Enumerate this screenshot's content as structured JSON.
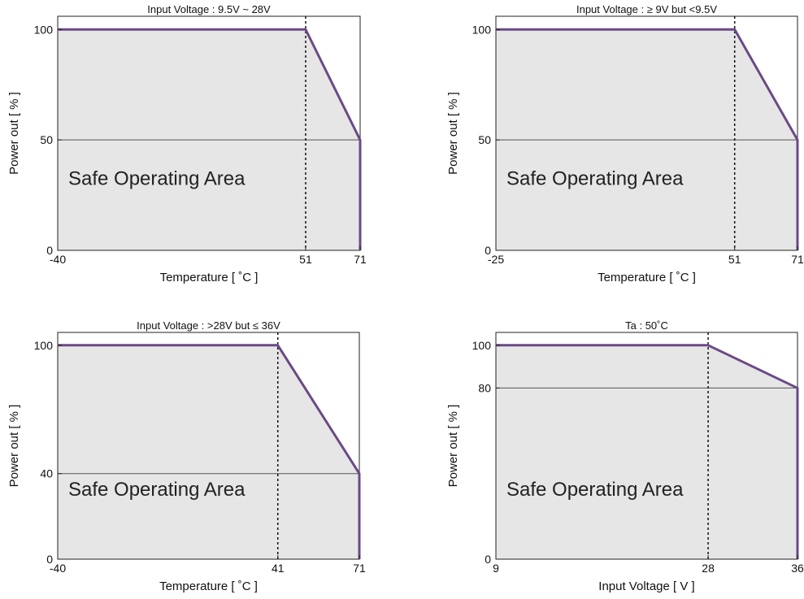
{
  "colors": {
    "curve": "#6a4a86",
    "area": "#e6e6e6",
    "frame": "#222222",
    "grid": "#555555"
  },
  "chart_data": [
    {
      "type": "area",
      "title": "Input Voltage : 9.5V ~ 28V",
      "xlabel": "Temperature [ ˚C ]",
      "ylabel": "Power out [ % ]",
      "xlim": [
        -40,
        71
      ],
      "ylim": [
        0,
        106
      ],
      "xticks": [
        -40,
        51,
        71
      ],
      "xtick_labels": [
        "-40",
        "51",
        "71"
      ],
      "yticks": [
        0,
        50,
        100
      ],
      "ytick_labels": [
        "0",
        "50",
        "100"
      ],
      "x": [
        -40,
        51,
        71,
        71
      ],
      "y": [
        100,
        100,
        50,
        0
      ],
      "hline": 50,
      "vline": 51,
      "annotation": "Safe Operating Area"
    },
    {
      "type": "area",
      "title": "Input Voltage : ≥ 9V but <9.5V",
      "xlabel": "Temperature [ ˚C ]",
      "ylabel": "Power out [ % ]",
      "xlim": [
        -25,
        71
      ],
      "ylim": [
        0,
        106
      ],
      "xticks": [
        -25,
        51,
        71
      ],
      "xtick_labels": [
        "-25",
        "51",
        "71"
      ],
      "yticks": [
        0,
        50,
        100
      ],
      "ytick_labels": [
        "0",
        "50",
        "100"
      ],
      "x": [
        -25,
        51,
        71,
        71
      ],
      "y": [
        100,
        100,
        50,
        0
      ],
      "hline": 50,
      "vline": 51,
      "annotation": "Safe Operating Area"
    },
    {
      "type": "area",
      "title": "Input Voltage : >28V but ≤ 36V",
      "xlabel": "Temperature [ ˚C ]",
      "ylabel": "Power out [ % ]",
      "xlim": [
        -40,
        71
      ],
      "ylim": [
        0,
        106
      ],
      "xticks": [
        -40,
        41,
        71
      ],
      "xtick_labels": [
        "-40",
        "41",
        "71"
      ],
      "yticks": [
        0,
        40,
        100
      ],
      "ytick_labels": [
        "0",
        "40",
        "100"
      ],
      "x": [
        -40,
        41,
        71,
        71
      ],
      "y": [
        100,
        100,
        40,
        0
      ],
      "hline": 40,
      "vline": 41,
      "annotation": "Safe Operating Area"
    },
    {
      "type": "area",
      "title": "Ta : 50˚C",
      "xlabel": "Input Voltage [ V ]",
      "ylabel": "Power out [ % ]",
      "xlim": [
        9,
        36
      ],
      "ylim": [
        0,
        106
      ],
      "xticks": [
        9,
        28,
        36
      ],
      "xtick_labels": [
        "9",
        "28",
        "36"
      ],
      "yticks": [
        0,
        80,
        100
      ],
      "ytick_labels": [
        "0",
        "80",
        "100"
      ],
      "x": [
        9,
        28,
        36,
        36
      ],
      "y": [
        100,
        100,
        80,
        0
      ],
      "hline": 80,
      "vline": 28,
      "annotation": "Safe Operating Area"
    }
  ]
}
